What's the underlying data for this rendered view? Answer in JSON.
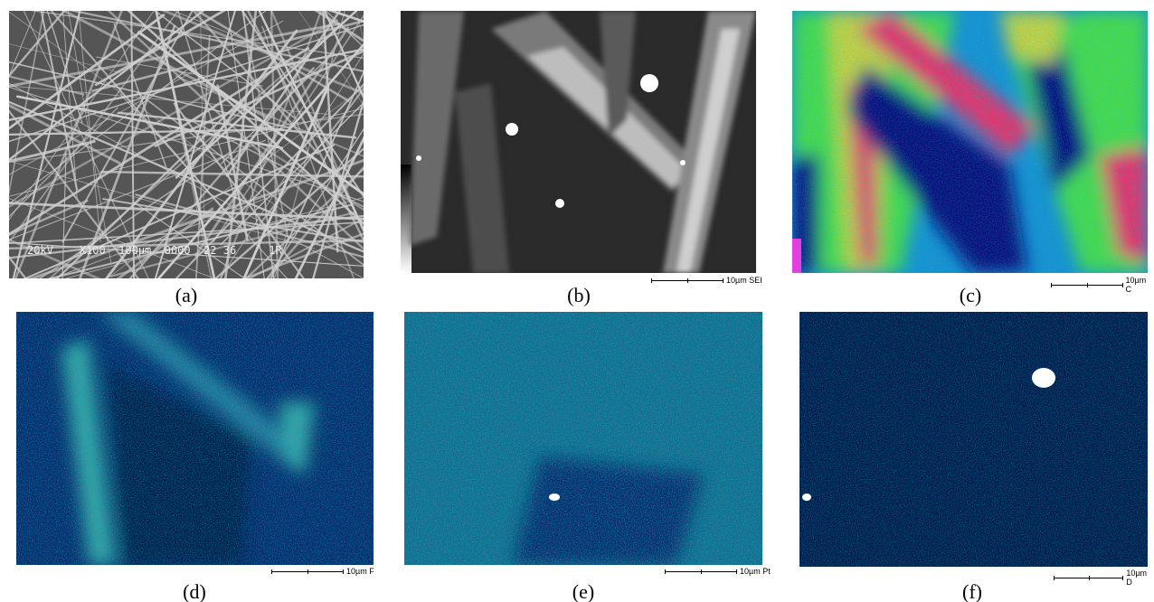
{
  "panels": [
    {
      "caption": "(a)",
      "overlay": "20kV    X100  100µm  0000  22 36     1R"
    },
    {
      "caption": "(b)",
      "scale_label": "10µm  SEI"
    },
    {
      "caption": "(c)",
      "scale_label": "10µm  C"
    },
    {
      "caption": "(d)",
      "scale_label": "10µm  F"
    },
    {
      "caption": "(e)",
      "scale_label": "10µm  Pt"
    },
    {
      "caption": "(f)",
      "scale_label": "10µm  D"
    }
  ]
}
